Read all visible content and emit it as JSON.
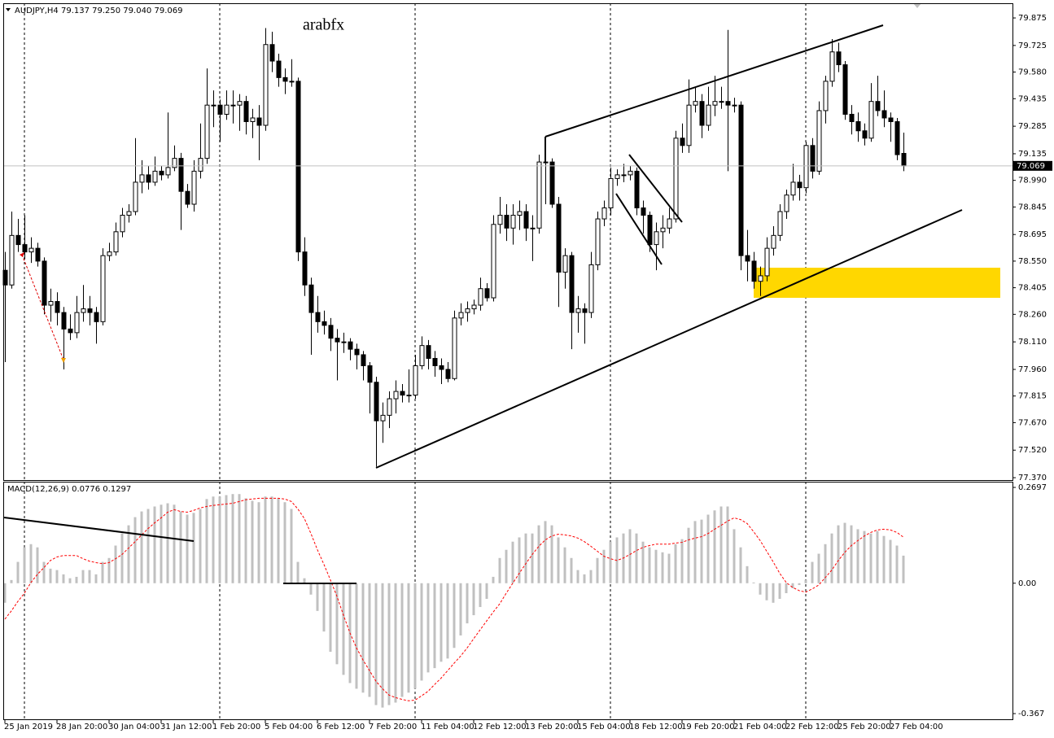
{
  "chart_data": [
    {
      "type": "candlestick",
      "title": "AUDJPY,H4  79.137 79.250 79.040 79.069",
      "annotation": "arabfx",
      "up_color": "#ffffff",
      "down_color": "#000000",
      "wick_color": "#000000",
      "categories": [
        "25 Jan 2019",
        null,
        null,
        null,
        null,
        null,
        null,
        null,
        "28 Jan 20:00",
        null,
        null,
        null,
        null,
        null,
        null,
        null,
        "30 Jan 04:00",
        null,
        null,
        null,
        null,
        null,
        null,
        null,
        "31 Jan 12:00",
        null,
        null,
        null,
        null,
        null,
        null,
        null,
        "1 Feb 20:00",
        null,
        null,
        null,
        null,
        null,
        null,
        null,
        "5 Feb 04:00",
        null,
        null,
        null,
        null,
        null,
        null,
        null,
        "6 Feb 12:00",
        null,
        null,
        null,
        null,
        null,
        null,
        null,
        "7 Feb 20:00",
        null,
        null,
        null,
        null,
        null,
        null,
        null,
        "11 Feb 04:00",
        null,
        null,
        null,
        null,
        null,
        null,
        null,
        "12 Feb 12:00",
        null,
        null,
        null,
        null,
        null,
        null,
        null,
        "13 Feb 20:00",
        null,
        null,
        null,
        null,
        null,
        null,
        null,
        "15 Feb 04:00",
        null,
        null,
        null,
        null,
        null,
        null,
        null,
        "18 Feb 12:00",
        null,
        null,
        null,
        null,
        null,
        null,
        null,
        "19 Feb 20:00",
        null,
        null,
        null,
        null,
        null,
        null,
        null,
        "21 Feb 04:00",
        null,
        null,
        null,
        null,
        null,
        null,
        null,
        "22 Feb 12:00",
        null,
        null,
        null,
        null,
        null,
        null,
        null,
        "25 Feb 20:00",
        null,
        null,
        null,
        null,
        null,
        null,
        null,
        "27 Feb 04:00",
        null,
        null
      ],
      "open": [
        78.5,
        78.42,
        78.69,
        78.64,
        78.6,
        78.62,
        78.55,
        78.31,
        78.33,
        78.27,
        78.18,
        78.16,
        78.27,
        78.29,
        78.27,
        78.22,
        78.58,
        78.6,
        78.71,
        78.8,
        78.82,
        78.98,
        79.02,
        78.98,
        79.04,
        79.02,
        79.06,
        79.11,
        78.93,
        78.86,
        79.04,
        79.11,
        79.4,
        79.4,
        79.35,
        79.4,
        79.4,
        79.42,
        79.31,
        79.33,
        79.29,
        79.73,
        79.64,
        79.55,
        79.53,
        79.53,
        78.6,
        78.42,
        78.27,
        78.22,
        78.2,
        78.13,
        78.11,
        78.11,
        78.07,
        78.04,
        77.98,
        77.89,
        77.68,
        77.71,
        77.8,
        77.84,
        77.82,
        77.82,
        77.98,
        78.09,
        78.02,
        77.98,
        77.96,
        77.91,
        78.24,
        78.27,
        78.29,
        78.31,
        78.4,
        78.35,
        78.75,
        78.8,
        78.73,
        78.8,
        78.82,
        78.73,
        78.73,
        79.09,
        79.09,
        78.86,
        78.49,
        78.58,
        78.27,
        78.29,
        78.27,
        78.53,
        78.78,
        78.84,
        79.0,
        79.02,
        79.02,
        79.04,
        78.84,
        78.8,
        78.64,
        78.71,
        78.73,
        78.78,
        79.22,
        79.18,
        79.4,
        79.42,
        79.29,
        79.4,
        79.42,
        79.42,
        79.4,
        79.4,
        78.58,
        78.55,
        78.44,
        78.47,
        78.62,
        78.69,
        78.82,
        78.91,
        78.98,
        78.95,
        79.18,
        79.04,
        79.37,
        79.53,
        79.69,
        79.62,
        79.35,
        79.31,
        79.26,
        79.22,
        79.42,
        79.37,
        79.33,
        79.31,
        79.137
      ],
      "high": [
        78.6,
        78.82,
        78.78,
        78.8,
        78.68,
        78.65,
        78.57,
        78.4,
        78.38,
        78.3,
        78.26,
        78.36,
        78.42,
        78.36,
        78.3,
        78.62,
        78.65,
        78.76,
        78.84,
        78.86,
        79.22,
        79.1,
        79.07,
        79.12,
        79.07,
        79.36,
        79.18,
        79.14,
        78.97,
        79.1,
        79.3,
        79.6,
        79.48,
        79.43,
        79.48,
        79.48,
        79.46,
        79.45,
        79.38,
        79.4,
        79.82,
        79.8,
        79.68,
        79.6,
        79.65,
        79.55,
        78.68,
        78.46,
        78.36,
        78.28,
        78.24,
        78.18,
        78.16,
        78.13,
        78.1,
        78.06,
        78.0,
        77.92,
        77.78,
        77.84,
        77.9,
        77.88,
        77.96,
        78.04,
        78.14,
        78.12,
        78.06,
        78.02,
        78.0,
        78.28,
        78.32,
        78.33,
        78.34,
        78.46,
        78.43,
        78.8,
        78.9,
        78.86,
        78.86,
        78.88,
        78.86,
        78.8,
        79.13,
        79.12,
        79.11,
        78.9,
        78.62,
        78.6,
        78.36,
        78.32,
        78.6,
        78.82,
        78.88,
        79.06,
        79.05,
        79.08,
        79.07,
        79.06,
        78.88,
        78.82,
        78.76,
        78.8,
        78.84,
        79.26,
        79.3,
        79.54,
        79.5,
        79.46,
        79.5,
        79.56,
        79.5,
        79.81,
        79.44,
        79.42,
        78.72,
        78.6,
        78.52,
        78.68,
        78.74,
        78.86,
        78.94,
        79.08,
        79.02,
        79.2,
        79.22,
        79.42,
        79.56,
        79.76,
        79.74,
        79.64,
        79.4,
        79.36,
        79.3,
        79.52,
        79.56,
        79.48,
        79.36,
        79.33,
        79.25
      ],
      "low": [
        78.0,
        78.4,
        78.6,
        78.56,
        78.54,
        78.52,
        78.26,
        78.22,
        78.2,
        77.96,
        78.12,
        78.13,
        78.22,
        78.2,
        78.1,
        78.2,
        78.55,
        78.58,
        78.68,
        78.76,
        78.8,
        78.92,
        78.94,
        78.96,
        78.99,
        79.0,
        79.04,
        78.72,
        78.84,
        78.82,
        79.0,
        79.08,
        79.28,
        79.2,
        79.32,
        79.3,
        79.26,
        79.24,
        79.22,
        79.1,
        79.26,
        79.58,
        79.5,
        79.46,
        79.5,
        78.55,
        78.36,
        78.04,
        78.16,
        78.15,
        78.06,
        77.9,
        78.05,
        78.01,
        77.96,
        77.9,
        77.72,
        77.43,
        77.56,
        77.64,
        77.72,
        77.78,
        77.78,
        77.8,
        77.96,
        77.96,
        77.92,
        77.88,
        77.89,
        77.9,
        78.2,
        78.22,
        78.26,
        78.28,
        78.33,
        78.33,
        78.7,
        78.66,
        78.64,
        78.72,
        78.66,
        78.55,
        78.7,
        78.86,
        78.84,
        78.3,
        78.4,
        78.07,
        78.16,
        78.1,
        78.24,
        78.5,
        78.74,
        78.8,
        78.96,
        78.98,
        78.99,
        78.8,
        78.7,
        78.6,
        78.5,
        78.62,
        78.7,
        78.76,
        79.14,
        79.14,
        79.36,
        79.22,
        79.26,
        79.34,
        79.38,
        79.04,
        79.36,
        78.5,
        78.44,
        78.4,
        78.36,
        78.44,
        78.58,
        78.66,
        78.78,
        78.88,
        78.88,
        78.92,
        79.0,
        79.02,
        79.3,
        79.5,
        79.58,
        79.32,
        79.24,
        79.2,
        79.18,
        79.2,
        79.34,
        79.28,
        79.2,
        79.1,
        79.04
      ],
      "close": [
        78.42,
        78.69,
        78.64,
        78.6,
        78.62,
        78.55,
        78.31,
        78.33,
        78.27,
        78.18,
        78.16,
        78.27,
        78.29,
        78.27,
        78.22,
        78.58,
        78.6,
        78.71,
        78.8,
        78.82,
        78.98,
        79.02,
        78.98,
        79.04,
        79.02,
        79.06,
        79.11,
        78.93,
        78.86,
        79.04,
        79.11,
        79.4,
        79.4,
        79.35,
        79.4,
        79.4,
        79.42,
        79.31,
        79.33,
        79.29,
        79.73,
        79.64,
        79.55,
        79.53,
        79.53,
        78.6,
        78.42,
        78.27,
        78.22,
        78.2,
        78.13,
        78.11,
        78.11,
        78.07,
        78.04,
        77.98,
        77.89,
        77.68,
        77.71,
        77.8,
        77.84,
        77.82,
        77.82,
        77.98,
        78.09,
        78.02,
        77.98,
        77.96,
        77.91,
        78.24,
        78.27,
        78.29,
        78.31,
        78.4,
        78.35,
        78.75,
        78.8,
        78.73,
        78.8,
        78.82,
        78.73,
        78.73,
        79.09,
        79.09,
        78.86,
        78.49,
        78.58,
        78.27,
        78.29,
        78.27,
        78.53,
        78.78,
        78.84,
        79.0,
        79.02,
        79.02,
        79.04,
        78.84,
        78.8,
        78.64,
        78.71,
        78.73,
        78.78,
        79.22,
        79.18,
        79.4,
        79.42,
        79.29,
        79.4,
        79.42,
        79.42,
        79.4,
        79.4,
        78.58,
        78.55,
        78.44,
        78.47,
        78.62,
        78.69,
        78.82,
        78.91,
        78.98,
        78.95,
        79.18,
        79.04,
        79.37,
        79.53,
        79.69,
        79.62,
        79.35,
        79.31,
        79.26,
        79.22,
        79.42,
        79.37,
        79.33,
        79.31,
        79.13,
        79.069
      ],
      "ylim": [
        77.357,
        79.955
      ],
      "yticks": [
        79.875,
        79.725,
        {
          "value": 79.58,
          "label": "79.580"
        },
        79.435,
        79.285,
        79.135,
        {
          "value": 78.99,
          "label": "78.990"
        },
        78.845,
        78.695,
        {
          "value": 78.55,
          "label": "78.550"
        },
        78.405,
        {
          "value": 78.26,
          "label": "78.260"
        },
        {
          "value": 78.11,
          "label": "78.110"
        },
        {
          "value": 77.96,
          "label": "77.960"
        },
        77.815,
        {
          "value": 77.67,
          "label": "77.670"
        },
        {
          "value": 77.52,
          "label": "77.520"
        },
        {
          "value": 77.37,
          "label": "77.370"
        }
      ]
    },
    {
      "type": "macd",
      "title": "MACD(12,26,9) 0.0776 0.1297",
      "series": [
        {
          "color": "#c0c0c0",
          "values": [
            -0.055,
            0.009,
            0.06,
            0.101,
            0.11,
            0.101,
            0.06,
            0.041,
            0.037,
            0.025,
            0.014,
            0.018,
            0.037,
            0.037,
            0.025,
            0.06,
            0.071,
            0.106,
            0.14,
            0.163,
            0.186,
            0.202,
            0.209,
            0.216,
            0.221,
            0.225,
            0.221,
            0.202,
            0.193,
            0.198,
            0.209,
            0.237,
            0.244,
            0.244,
            0.248,
            0.251,
            0.251,
            0.239,
            0.232,
            0.228,
            0.244,
            0.244,
            0.239,
            0.228,
            0.209,
            0.06,
            0.014,
            -0.032,
            -0.078,
            -0.136,
            -0.193,
            -0.228,
            -0.258,
            -0.281,
            -0.297,
            -0.308,
            -0.32,
            -0.343,
            -0.35,
            -0.343,
            -0.336,
            -0.32,
            -0.308,
            -0.297,
            -0.274,
            -0.251,
            -0.239,
            -0.221,
            -0.212,
            -0.182,
            -0.147,
            -0.113,
            -0.09,
            -0.067,
            -0.044,
            0.018,
            0.071,
            0.094,
            0.117,
            0.129,
            0.14,
            0.14,
            0.163,
            0.175,
            0.163,
            0.129,
            0.101,
            0.071,
            0.037,
            0.025,
            0.037,
            0.071,
            0.094,
            0.117,
            0.129,
            0.14,
            0.152,
            0.14,
            0.117,
            0.101,
            0.094,
            0.087,
            0.083,
            0.11,
            0.124,
            0.156,
            0.175,
            0.179,
            0.193,
            0.205,
            0.216,
            0.216,
            0.152,
            0.101,
            0.048,
            0.002,
            -0.032,
            -0.048,
            -0.055,
            -0.044,
            -0.028,
            -0.014,
            -0.005,
            0.009,
            0.06,
            0.083,
            0.11,
            0.14,
            0.163,
            0.17,
            0.163,
            0.152,
            0.147,
            0.14,
            0.147,
            0.133,
            0.122,
            0.106,
            0.0776
          ]
        },
        {
          "color": "#ff0000",
          "values": [
            -0.101,
            -0.078,
            -0.051,
            -0.028,
            0.002,
            0.025,
            0.044,
            0.064,
            0.074,
            0.078,
            0.078,
            0.078,
            0.069,
            0.062,
            0.058,
            0.055,
            0.058,
            0.069,
            0.081,
            0.099,
            0.117,
            0.136,
            0.154,
            0.17,
            0.184,
            0.2,
            0.207,
            0.202,
            0.2,
            0.205,
            0.212,
            0.216,
            0.219,
            0.221,
            0.223,
            0.225,
            0.23,
            0.235,
            0.237,
            0.239,
            0.239,
            0.239,
            0.239,
            0.237,
            0.23,
            0.209,
            0.182,
            0.14,
            0.094,
            0.053,
            0.009,
            -0.037,
            -0.09,
            -0.14,
            -0.182,
            -0.216,
            -0.246,
            -0.276,
            -0.297,
            -0.315,
            -0.322,
            -0.327,
            -0.331,
            -0.329,
            -0.317,
            -0.304,
            -0.285,
            -0.267,
            -0.246,
            -0.225,
            -0.205,
            -0.182,
            -0.156,
            -0.131,
            -0.106,
            -0.081,
            -0.058,
            -0.028,
            0,
            0.028,
            0.055,
            0.081,
            0.104,
            0.122,
            0.133,
            0.138,
            0.136,
            0.133,
            0.127,
            0.117,
            0.104,
            0.09,
            0.076,
            0.069,
            0.064,
            0.071,
            0.081,
            0.092,
            0.101,
            0.106,
            0.11,
            0.11,
            0.11,
            0.113,
            0.115,
            0.122,
            0.127,
            0.131,
            0.14,
            0.152,
            0.163,
            0.175,
            0.184,
            0.179,
            0.168,
            0.145,
            0.12,
            0.09,
            0.06,
            0.028,
            0.002,
            -0.012,
            -0.021,
            -0.025,
            -0.016,
            -0.005,
            0.016,
            0.037,
            0.064,
            0.087,
            0.106,
            0.12,
            0.133,
            0.143,
            0.15,
            0.152,
            0.15,
            0.143,
            0.1297
          ]
        }
      ],
      "ylim": [
        -0.383,
        0.2835
      ],
      "yticks": [
        0.2697,
        {
          "value": 0,
          "label": "0.00"
        },
        -0.367
      ]
    }
  ]
}
